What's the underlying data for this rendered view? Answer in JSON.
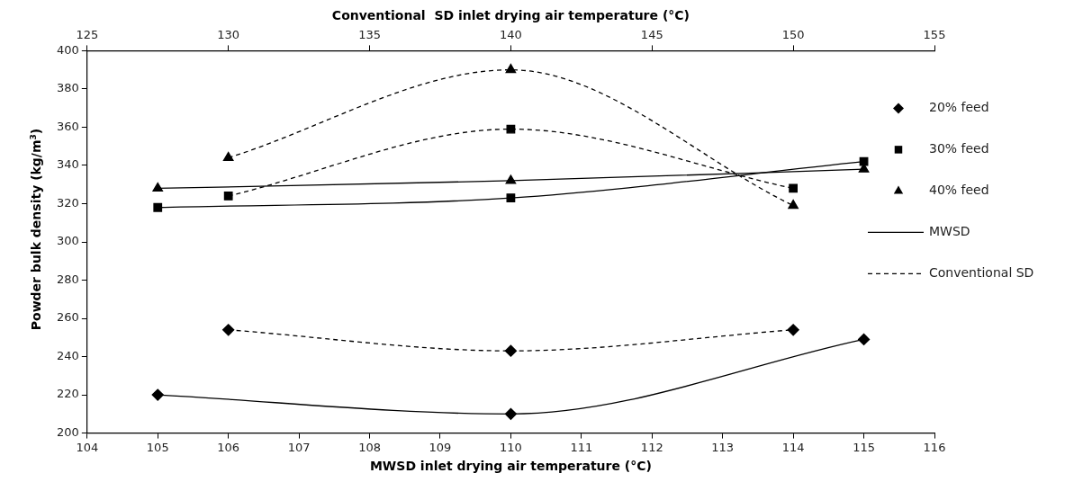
{
  "chart_data": {
    "type": "line",
    "xlabel": "MWSD inlet drying air temperature (°C)",
    "x2label": "Conventional  SD inlet drying air temperature (°C)",
    "ylabel": "Powder bulk density (kg/m$^{3}$)",
    "xlim": [
      104,
      116
    ],
    "xticks": [
      104,
      105,
      106,
      107,
      108,
      109,
      110,
      111,
      112,
      113,
      114,
      115,
      116
    ],
    "x2lim": [
      125,
      155
    ],
    "x2ticks": [
      125,
      130,
      135,
      140,
      145,
      150,
      155
    ],
    "ylim": [
      200,
      400
    ],
    "yticks": [
      200,
      220,
      240,
      260,
      280,
      300,
      320,
      340,
      360,
      380,
      400
    ],
    "grid": false,
    "legend": "right",
    "series": [
      {
        "name": "20% feed",
        "color": "#000000",
        "marker": "diamond",
        "line_style": "solid",
        "x": [
          105,
          110,
          115
        ],
        "values": [
          220,
          210,
          249
        ]
      },
      {
        "name": "30% feed",
        "color": "#000000",
        "marker": "square",
        "line_style": "solid",
        "x": [
          105,
          110,
          115
        ],
        "values": [
          318,
          323,
          342
        ]
      },
      {
        "name": "40% feed",
        "color": "#000000",
        "marker": "triangle",
        "line_style": "solid",
        "x": [
          105,
          110,
          115
        ],
        "values": [
          328,
          332,
          338
        ]
      },
      {
        "color": "#000000",
        "marker": "diamond",
        "line_style": "dashed",
        "axis": "x2",
        "x": [
          130,
          140,
          150
        ],
        "values": [
          254,
          243,
          254
        ]
      },
      {
        "color": "#000000",
        "marker": "square",
        "line_style": "dashed",
        "axis": "x2",
        "x": [
          130,
          140,
          150
        ],
        "values": [
          324,
          359,
          328
        ]
      },
      {
        "color": "#000000",
        "marker": "triangle",
        "line_style": "dashed",
        "axis": "x2",
        "x": [
          130,
          140,
          150
        ],
        "values": [
          344,
          390,
          319
        ]
      }
    ],
    "annotations": [
      "MWSD",
      "Conventional SD"
    ]
  }
}
